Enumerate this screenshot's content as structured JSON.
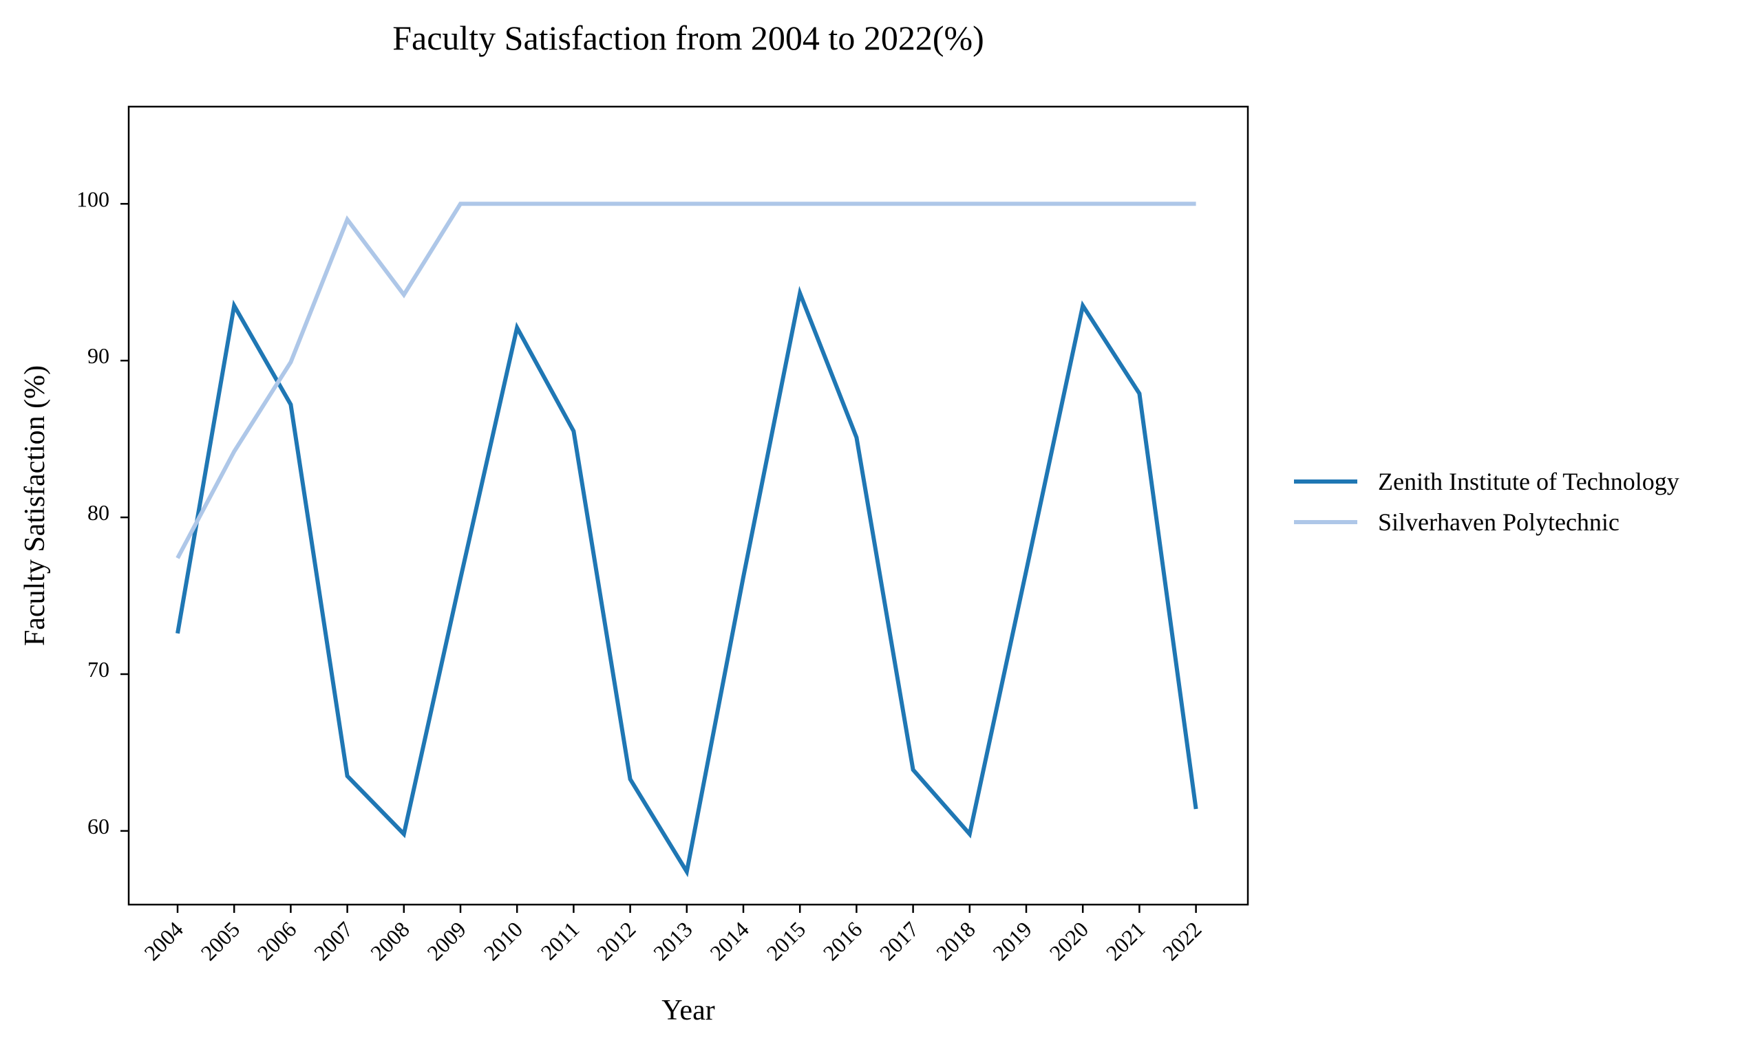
{
  "chart_data": {
    "type": "line",
    "title": "Faculty Satisfaction from 2004 to 2022(%)",
    "xlabel": "Year",
    "ylabel": "Faculty Satisfaction (%)",
    "ylim": [
      55.3,
      106.2
    ],
    "yticks": [
      60,
      70,
      80,
      90,
      100
    ],
    "categories": [
      "2004",
      "2005",
      "2006",
      "2007",
      "2008",
      "2009",
      "2010",
      "2011",
      "2012",
      "2013",
      "2014",
      "2015",
      "2016",
      "2017",
      "2018",
      "2019",
      "2020",
      "2021",
      "2022"
    ],
    "grid": false,
    "legend_position": "right",
    "series": [
      {
        "name": "Zenith Institute of Technology",
        "color": "#1f77b4",
        "values": [
          72.6,
          93.5,
          87.2,
          63.5,
          59.8,
          76.1,
          92.1,
          85.5,
          63.3,
          57.4,
          76.2,
          94.3,
          85.1,
          63.9,
          59.8,
          76.6,
          93.5,
          87.9,
          61.4
        ]
      },
      {
        "name": "Silverhaven Polytechnic",
        "color": "#aec7e8",
        "values": [
          77.4,
          84.2,
          89.9,
          99.0,
          94.2,
          100.0,
          100.0,
          100.0,
          100.0,
          100.0,
          100.0,
          100.0,
          100.0,
          100.0,
          100.0,
          100.0,
          100.0,
          100.0,
          100.0
        ]
      }
    ]
  }
}
